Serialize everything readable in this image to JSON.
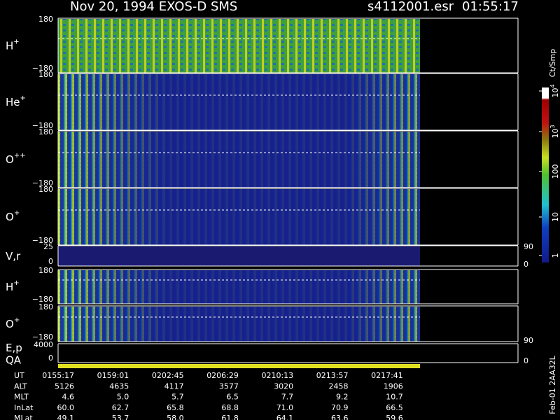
{
  "header": {
    "title": "Nov 20, 1994   EXOS-D SMS",
    "file": "s4112001.esr",
    "time": "01:55:17"
  },
  "panels": [
    {
      "label": "H",
      "sup": "+",
      "top": "180",
      "bottom": "−180"
    },
    {
      "label": "He",
      "sup": "+",
      "top": "180",
      "bottom": "−180"
    },
    {
      "label": "O",
      "sup": "++",
      "top": "180",
      "bottom": "−180"
    },
    {
      "label": "O",
      "sup": "+",
      "top": "180",
      "bottom": "−180"
    },
    {
      "label": "V,r",
      "top": "25",
      "bottom": "0",
      "right_top": "90",
      "right_bottom": "0"
    },
    {
      "label": "H",
      "sup": "+",
      "top": "180",
      "bottom": "−180"
    },
    {
      "label": "O",
      "sup": "+",
      "top": "180",
      "bottom": "−180"
    },
    {
      "label": "E,p",
      "label2": "QA",
      "top": "4000",
      "bottom": "0",
      "right_top": "90",
      "right_bottom": "0"
    }
  ],
  "colorbar": {
    "title": "Ct/Smp",
    "ticks": [
      {
        "base": "10",
        "exp": "4"
      },
      {
        "base": "10",
        "exp": "3"
      },
      {
        "base": "100"
      },
      {
        "base": "10"
      },
      {
        "base": "1"
      }
    ]
  },
  "table": {
    "rows": [
      [
        "UT",
        "0155:17",
        "0159:01",
        "0202:45",
        "0206:29",
        "0210:13",
        "0213:57",
        "0217:41"
      ],
      [
        "ALT",
        "5126",
        "4635",
        "4117",
        "3577",
        "3020",
        "2458",
        "1906"
      ],
      [
        "MLT",
        "4.6",
        "5.0",
        "5.7",
        "6.5",
        "7.7",
        "9.2",
        "10.7"
      ],
      [
        "InLat",
        "60.0",
        "62.7",
        "65.8",
        "68.8",
        "71.0",
        "70.9",
        "66.5"
      ],
      [
        "MLat",
        "49.1",
        "53.7",
        "58.0",
        "61.8",
        "64.1",
        "63.6",
        "59.6"
      ]
    ]
  },
  "footer_note": "Feb-01 2AA32L"
}
